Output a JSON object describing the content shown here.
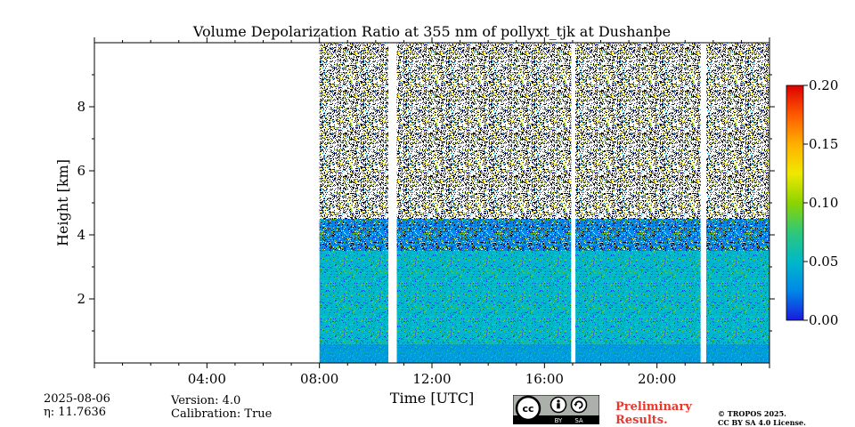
{
  "chart_data": {
    "type": "heatmap",
    "title": "Volume Depolarization Ratio at 355 nm of pollyxt_tjk at Dushanbe",
    "xlabel": "Time [UTC]",
    "ylabel": "Height [km]",
    "xlim_hours": [
      0,
      24
    ],
    "ylim_km": [
      0,
      10
    ],
    "x_ticks": [
      {
        "hour": 4,
        "label": "04:00"
      },
      {
        "hour": 8,
        "label": "08:00"
      },
      {
        "hour": 12,
        "label": "12:00"
      },
      {
        "hour": 16,
        "label": "16:00"
      },
      {
        "hour": 20,
        "label": "20:00"
      }
    ],
    "y_ticks": [
      {
        "value": 2,
        "label": "2"
      },
      {
        "value": 4,
        "label": "4"
      },
      {
        "value": 6,
        "label": "6"
      },
      {
        "value": 8,
        "label": "8"
      }
    ],
    "colorbar": {
      "min": 0.0,
      "max": 0.2,
      "ticks": [
        {
          "value": 0.0,
          "label": "0.00"
        },
        {
          "value": 0.05,
          "label": "0.05"
        },
        {
          "value": 0.1,
          "label": "0.10"
        },
        {
          "value": 0.15,
          "label": "0.15"
        },
        {
          "value": 0.2,
          "label": "0.20"
        }
      ],
      "colormap": [
        "#1a1adc",
        "#0088e8",
        "#00b8c8",
        "#2ec87a",
        "#8cd400",
        "#f0e800",
        "#ffb000",
        "#ff5a00",
        "#dc0000"
      ]
    },
    "data_segments": [
      {
        "start_hour": 8.0,
        "end_hour": 10.45
      },
      {
        "start_hour": 10.75,
        "end_hour": 16.95
      },
      {
        "start_hour": 17.1,
        "end_hour": 21.55
      },
      {
        "start_hour": 21.75,
        "end_hour": 24.0
      }
    ],
    "layers": [
      {
        "name": "near-surface",
        "from_km": 0.0,
        "to_km": 0.6,
        "depol_ratio": 0.04
      },
      {
        "name": "aerosol layer",
        "from_km": 0.6,
        "to_km": 3.5,
        "depol_ratio": 0.05
      },
      {
        "name": "transition",
        "from_km": 3.5,
        "to_km": 4.5,
        "depol_ratio": 0.02
      },
      {
        "name": "noisy free troposphere",
        "from_km": 4.5,
        "to_km": 10.0,
        "depol_ratio": null
      }
    ],
    "grid": false
  },
  "info": {
    "date": "2025-08-06",
    "eta_line": "η: 11.7636",
    "version_line": "Version: 4.0",
    "calibration_line": "Calibration: True"
  },
  "license": {
    "preliminary_line1": "Preliminary",
    "preliminary_line2": "Results.",
    "copyright_line1": "© TROPOS 2025.",
    "copyright_line2": "CC BY SA 4.0 License.",
    "badge_cc": "cc",
    "badge_by": "BY",
    "badge_sa": "SA"
  }
}
